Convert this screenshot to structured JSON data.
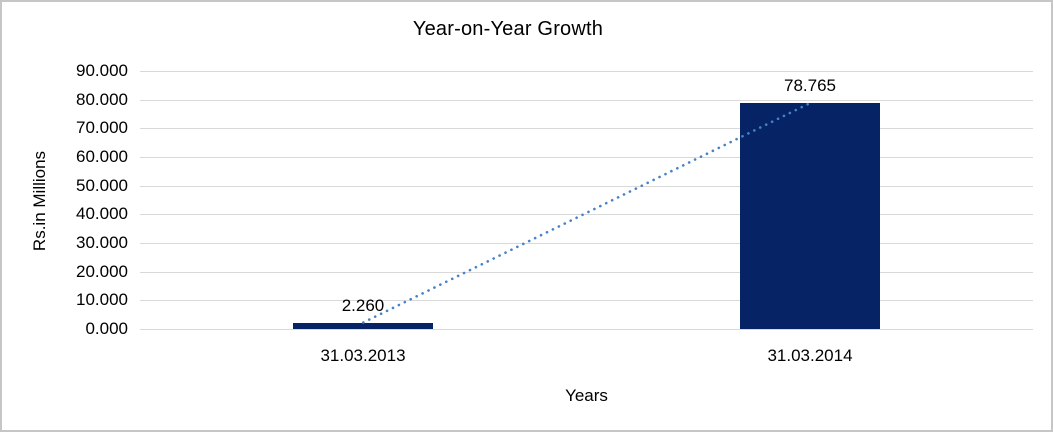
{
  "page": {
    "background": "#ffffff",
    "frame_border_color": "#c6c6c6"
  },
  "chart_data": {
    "type": "bar",
    "title": "Year-on-Year Growth",
    "categories": [
      "31.03.2013",
      "31.03.2014"
    ],
    "values": [
      2.26,
      78.765
    ],
    "data_labels": [
      "2.260",
      "78.765"
    ],
    "xlabel": "Years",
    "ylabel": "Rs.in Millions",
    "ylim": [
      0,
      90
    ],
    "ytick_step": 10,
    "ytick_labels": [
      "0.000",
      "10.000",
      "20.000",
      "30.000",
      "40.000",
      "50.000",
      "60.000",
      "70.000",
      "80.000",
      "90.000"
    ],
    "grid": true,
    "legend": false,
    "bar_color": "#062365",
    "gridline_color": "#d9d9d9",
    "text_color": "#000000",
    "trendline": {
      "type": "linear",
      "style": "dotted",
      "color": "#4682c8",
      "connects": [
        "31.03.2013",
        "31.03.2014"
      ]
    }
  }
}
